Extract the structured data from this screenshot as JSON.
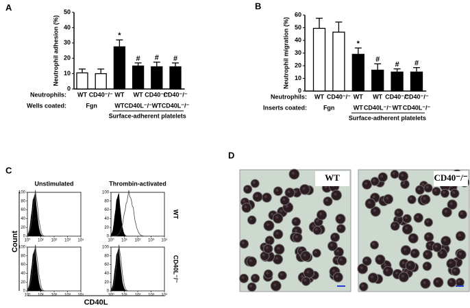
{
  "chart_data": [
    {
      "type": "bar",
      "panel_label": "A",
      "ylabel": "Neutrophil adhesion (%)",
      "row_labels": [
        "Neutrophils:",
        "Wells coated:"
      ],
      "categories": [
        "WT",
        "CD40⁻/⁻",
        "WT",
        "WT",
        "CD40⁻/⁻",
        "CD40⁻/⁻"
      ],
      "categories_row2": [
        null,
        null,
        "WT",
        "CD40L⁻/⁻",
        "WT",
        "CD40L⁻/⁻"
      ],
      "groups": [
        "Fgn",
        "Fgn",
        "Surface-adherent platelets",
        "Surface-adherent platelets",
        "Surface-adherent platelets",
        "Surface-adherent platelets"
      ],
      "values": [
        10.5,
        10,
        27.5,
        15,
        14.5,
        14.5
      ],
      "errors": [
        2.5,
        3,
        4.5,
        2,
        3,
        2.5
      ],
      "colors": [
        "#ffffff",
        "#ffffff",
        "#000000",
        "#000000",
        "#000000",
        "#000000"
      ],
      "annotations": [
        null,
        null,
        "*",
        "#",
        "#",
        "#"
      ],
      "ylim": [
        0,
        50
      ],
      "yticks": [
        0,
        10,
        20,
        30,
        40,
        50
      ]
    },
    {
      "type": "bar",
      "panel_label": "B",
      "ylabel": "Neutrophil migration (%)",
      "row_labels": [
        "Neutrophils:",
        "Inserts coated:"
      ],
      "categories": [
        "WT",
        "CD40⁻/⁻",
        "WT",
        "WT",
        "CD40⁻/⁻",
        "CD40⁻/⁻"
      ],
      "categories_row2": [
        null,
        null,
        "WT",
        "CD40L⁻/⁻",
        "WT",
        "CD40L⁻/⁻"
      ],
      "groups": [
        "Fgn",
        "Fgn",
        "Surface-adherent platelets",
        "Surface-adherent platelets",
        "Surface-adherent platelets",
        "Surface-adherent platelets"
      ],
      "values": [
        49.5,
        46.5,
        29,
        16.5,
        15,
        15
      ],
      "errors": [
        8,
        8,
        5,
        5,
        2.5,
        3.5
      ],
      "colors": [
        "#ffffff",
        "#ffffff",
        "#000000",
        "#000000",
        "#000000",
        "#000000"
      ],
      "annotations": [
        null,
        null,
        "*",
        "#",
        "#",
        "#"
      ],
      "ylim": [
        0,
        60
      ],
      "yticks": [
        0,
        10,
        20,
        30,
        40,
        50,
        60
      ]
    },
    {
      "type": "flow",
      "panel_label": "C",
      "columns": [
        "Unstimulated",
        "Thrombin-activated"
      ],
      "rows": [
        "WT",
        "CD40L⁻/⁻"
      ],
      "xlabel": "CD40L",
      "ylabel": "Count",
      "log": true,
      "xlim": [
        1,
        10000
      ],
      "xticks": [
        {
          "value": 1,
          "label": "10⁰"
        },
        {
          "value": 10,
          "label": "10¹"
        },
        {
          "value": 100,
          "label": "10²"
        },
        {
          "value": 1000,
          "label": "10³"
        },
        {
          "value": 10000,
          "label": "10⁴"
        }
      ],
      "ylim": [
        0,
        100
      ],
      "yticks": [
        0,
        20,
        40,
        60,
        80,
        100
      ]
    }
  ],
  "panel_d": {
    "panel_label": "D",
    "images": [
      "WT",
      "CD40⁻/⁻"
    ]
  }
}
